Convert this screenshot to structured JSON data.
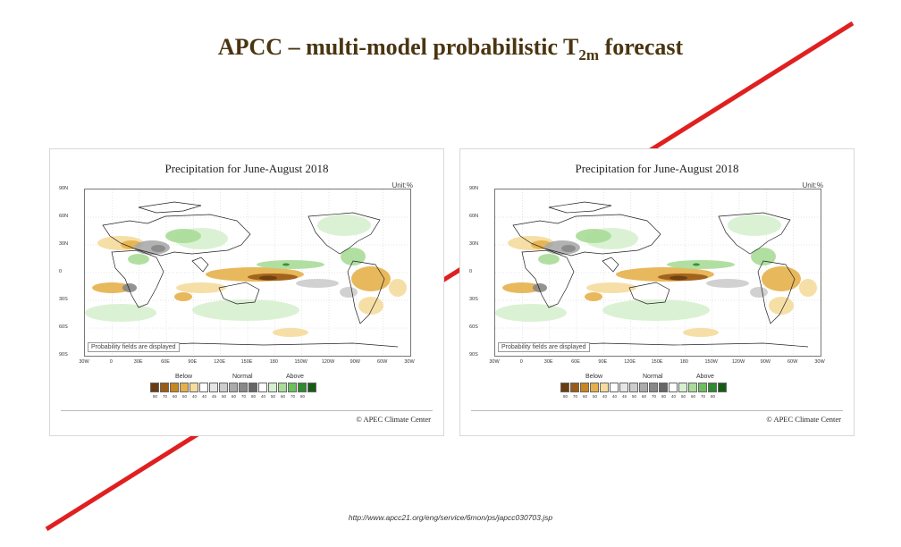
{
  "slide": {
    "title_main": "APCC – multi-model probabilistic T",
    "title_sub": "2m",
    "title_end": " forecast",
    "url": "http://www.apcc21.org/eng/service/6mon/ps/japcc030703.jsp",
    "accent_color": "#e02020"
  },
  "panels": [
    {
      "title": "Precipitation for June-August 2018",
      "unit": "Unit:%",
      "note": "Probability fields are displayed",
      "lat_labels": [
        "90N",
        "60N",
        "30N",
        "0",
        "30S",
        "60S",
        "90S"
      ],
      "lon_labels": [
        "30W",
        "0",
        "30E",
        "60E",
        "90E",
        "120E",
        "150E",
        "180",
        "150W",
        "120W",
        "90W",
        "60W",
        "30W"
      ],
      "legend": {
        "below_label": "Below",
        "normal_label": "Normal",
        "above_label": "Above",
        "values": [
          "80",
          "70",
          "60",
          "50",
          "40",
          "40",
          "45",
          "50",
          "60",
          "70",
          "80",
          "40",
          "50",
          "60",
          "70",
          "80"
        ]
      },
      "credit": "© APEC Climate Center"
    },
    {
      "title": "Precipitation for June-August 2018",
      "unit": "Unit:%",
      "note": "Probability fields are displayed",
      "lat_labels": [
        "90N",
        "60N",
        "30N",
        "0",
        "30S",
        "60S",
        "90S"
      ],
      "lon_labels": [
        "30W",
        "0",
        "30E",
        "60E",
        "90E",
        "120E",
        "150E",
        "180",
        "150W",
        "120W",
        "90W",
        "60W",
        "30W"
      ],
      "legend": {
        "below_label": "Below",
        "normal_label": "Normal",
        "above_label": "Above",
        "values": [
          "80",
          "70",
          "60",
          "50",
          "40",
          "40",
          "45",
          "50",
          "60",
          "70",
          "80",
          "40",
          "50",
          "60",
          "70",
          "80"
        ]
      },
      "credit": "© APEC Climate Center"
    }
  ],
  "legend_colors": [
    "#6b3c0e",
    "#9a5b16",
    "#c8861f",
    "#e5b04a",
    "#f5dc9c",
    "#ffffff",
    "#e6e6e6",
    "#cccccc",
    "#aaaaaa",
    "#888888",
    "#666666",
    "#ffffff",
    "#d7f0cf",
    "#a8dc97",
    "#6dbf5d",
    "#2e8b2e",
    "#145c14"
  ]
}
